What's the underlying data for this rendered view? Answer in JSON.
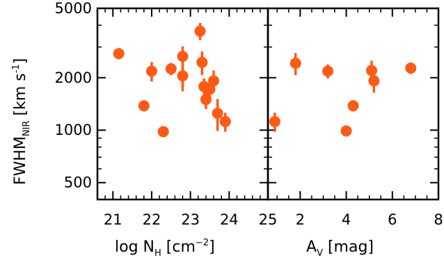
{
  "chart_data": [
    {
      "type": "scatter",
      "panel": "left",
      "xlabel": "log N",
      "xlabel_sub": "H",
      "xlabel_unit_open": " [cm",
      "xlabel_unit_sup": "−2",
      "xlabel_unit_close": "]",
      "ylabel": "FWHM",
      "ylabel_sub": "NIR",
      "ylabel_unit_open": " [km s",
      "ylabel_unit_sup": "-1",
      "ylabel_unit_close": "]",
      "xlim": [
        20.6,
        25.0
      ],
      "ylim": [
        400,
        5000
      ],
      "yscale": "log",
      "x_ticks": [
        "21",
        "22",
        "23",
        "24",
        "25"
      ],
      "y_ticks": [
        "500",
        "1000",
        "2000",
        "5000"
      ],
      "marker_color": "#ff5a14",
      "points": [
        {
          "x": 21.15,
          "y": 2750,
          "yerr": 180
        },
        {
          "x": 21.8,
          "y": 1380,
          "yerr": 100
        },
        {
          "x": 22.0,
          "y": 2180,
          "yerr": 280
        },
        {
          "x": 22.3,
          "y": 980,
          "yerr": 60
        },
        {
          "x": 22.5,
          "y": 2250,
          "yerr": 180
        },
        {
          "x": 22.8,
          "y": 2050,
          "yerr": 380
        },
        {
          "x": 22.8,
          "y": 2650,
          "yerr": 380
        },
        {
          "x": 23.25,
          "y": 3700,
          "yerr": 420
        },
        {
          "x": 23.3,
          "y": 2450,
          "yerr": 380
        },
        {
          "x": 23.35,
          "y": 1780,
          "yerr": 200
        },
        {
          "x": 23.4,
          "y": 1500,
          "yerr": 180
        },
        {
          "x": 23.5,
          "y": 1720,
          "yerr": 280
        },
        {
          "x": 23.6,
          "y": 1920,
          "yerr": 280
        },
        {
          "x": 23.7,
          "y": 1250,
          "yerr": 260
        },
        {
          "x": 23.9,
          "y": 1120,
          "yerr": 140
        }
      ]
    },
    {
      "type": "scatter",
      "panel": "right",
      "xlabel": "A",
      "xlabel_sub": "V",
      "xlabel_unit": " [mag]",
      "xlim": [
        0.6,
        8.0
      ],
      "ylim": [
        400,
        5000
      ],
      "yscale": "log",
      "x_ticks": [
        "2",
        "4",
        "6",
        "8"
      ],
      "marker_color": "#ff5a14",
      "points": [
        {
          "x": 0.9,
          "y": 1120,
          "yerr": 140
        },
        {
          "x": 1.8,
          "y": 2420,
          "yerr": 350
        },
        {
          "x": 3.2,
          "y": 2180,
          "yerr": 200
        },
        {
          "x": 4.0,
          "y": 990,
          "yerr": 70
        },
        {
          "x": 4.3,
          "y": 1380,
          "yerr": 100
        },
        {
          "x": 5.1,
          "y": 2200,
          "yerr": 300
        },
        {
          "x": 5.2,
          "y": 1920,
          "yerr": 280
        },
        {
          "x": 6.8,
          "y": 2270,
          "yerr": 170
        }
      ]
    }
  ]
}
